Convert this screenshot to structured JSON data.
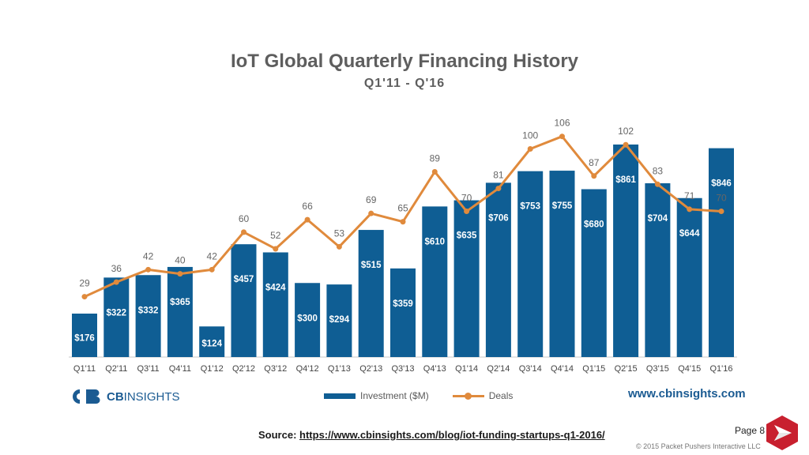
{
  "chart_data": {
    "type": "bar",
    "title": "IoT Global Quarterly Financing History",
    "subtitle": "Q1'11 - Q'16",
    "categories": [
      "Q1'11",
      "Q2'11",
      "Q3'11",
      "Q4'11",
      "Q1'12",
      "Q2'12",
      "Q3'12",
      "Q4'12",
      "Q1'13",
      "Q2'13",
      "Q3'13",
      "Q4'13",
      "Q1'14",
      "Q2'14",
      "Q3'14",
      "Q4'14",
      "Q1'15",
      "Q2'15",
      "Q3'15",
      "Q4'15",
      "Q1'16"
    ],
    "series": [
      {
        "name": "Investment ($M)",
        "kind": "bar",
        "color": "#0f5e94",
        "values": [
          176,
          322,
          332,
          365,
          124,
          457,
          424,
          300,
          294,
          515,
          359,
          610,
          635,
          706,
          753,
          755,
          680,
          861,
          704,
          644,
          846
        ],
        "labels": [
          "$176",
          "$322",
          "$332",
          "$365",
          "$124",
          "$457",
          "$424",
          "$300",
          "$294",
          "$515",
          "$359",
          "$610",
          "$635",
          "$706",
          "$753",
          "$755",
          "$680",
          "$861",
          "$704",
          "$644",
          "$846"
        ]
      },
      {
        "name": "Deals",
        "kind": "line",
        "color": "#e08a3c",
        "values": [
          29,
          36,
          42,
          40,
          42,
          60,
          52,
          66,
          53,
          69,
          65,
          89,
          70,
          81,
          100,
          106,
          87,
          102,
          83,
          71,
          70
        ]
      }
    ],
    "legend_position": "bottom",
    "grid": false
  },
  "footer": {
    "logo_prefix": "CB",
    "logo_suffix": "INSIGHTS",
    "website": "www.cbinsights.com",
    "source_label": "Source:",
    "source_url": "https://www.cbinsights.com/blog/iot-funding-startups-q1-2016/",
    "page_label": "Page",
    "page_number": "8",
    "copyright": "© 2015 Packet Pushers Interactive LLC"
  },
  "colors": {
    "bar": "#0f5e94",
    "line": "#e08a3c",
    "brand_red": "#c8202f"
  }
}
